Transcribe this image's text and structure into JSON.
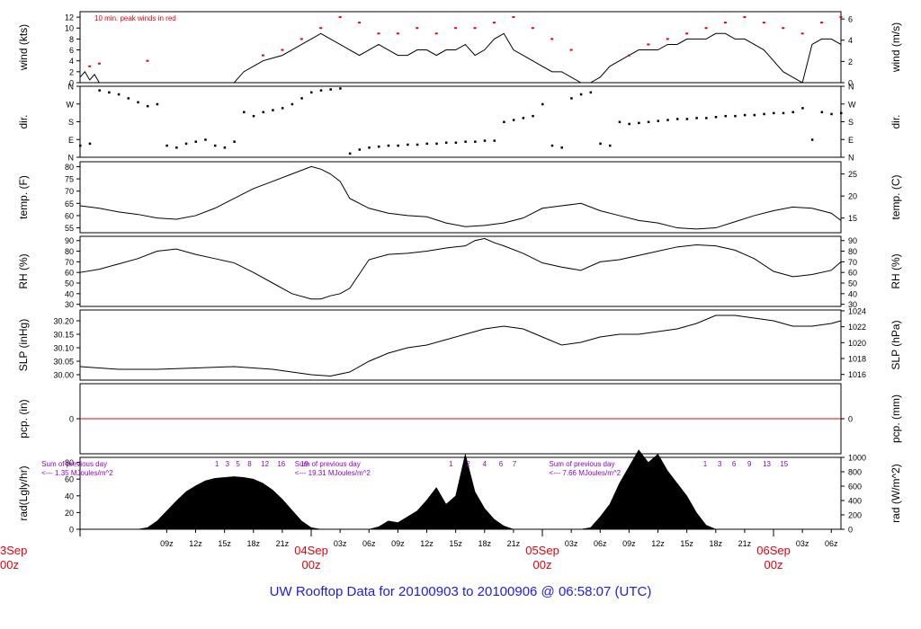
{
  "title": "UW Rooftop Data for 20100903  to  20100906 @ 06:58:07  (UTC)",
  "colors": {
    "accent_red": "#e8000c",
    "title_blue": "#1a1aff",
    "purple": "#9400d3",
    "ink": "#000000"
  },
  "x_axis": {
    "ticks": [
      "09z",
      "12z",
      "15z",
      "18z",
      "21z",
      "03z",
      "06z",
      "09z",
      "12z",
      "15z",
      "18z",
      "21z",
      "03z",
      "06z",
      "09z",
      "12z",
      "15z",
      "18z",
      "21z",
      "03z",
      "06z"
    ],
    "tick_hours": [
      9,
      12,
      15,
      18,
      21,
      27,
      30,
      33,
      36,
      39,
      42,
      45,
      51,
      54,
      57,
      60,
      63,
      66,
      69,
      75,
      78
    ],
    "days": [
      {
        "label_top": "3Sep",
        "label_bottom": "00z",
        "hour": 0
      },
      {
        "label_top": "04Sep",
        "label_bottom": "00z",
        "hour": 24
      },
      {
        "label_top": "05Sep",
        "label_bottom": "00z",
        "hour": 48
      },
      {
        "label_top": "06Sep",
        "label_bottom": "00z",
        "hour": 72
      }
    ]
  },
  "chart_data": [
    {
      "type": "line",
      "ylabel": "wind (kts)",
      "ylabel_right": "wind (m/s)",
      "left_ticks": [
        "0",
        "2",
        "4",
        "6",
        "8",
        "10",
        "12"
      ],
      "left_tick_values": [
        0,
        2,
        4,
        6,
        8,
        10,
        12
      ],
      "right_ticks": [
        "0",
        "2",
        "4",
        "6"
      ],
      "right_tick_values": [
        0,
        3.89,
        7.78,
        11.66
      ],
      "ylim": [
        0,
        13
      ],
      "annotation": "10 min. peak winds in red",
      "series": [
        {
          "x": [
            0,
            0.5,
            1,
            1.5,
            2,
            3,
            4,
            5,
            6,
            7,
            8,
            9,
            10,
            11,
            12,
            13,
            14,
            15,
            16,
            17,
            18,
            19,
            20,
            21,
            22,
            23,
            24,
            25,
            26,
            27,
            28,
            29,
            30,
            31,
            32,
            33,
            34,
            35,
            36,
            37,
            38,
            39,
            40,
            41,
            42,
            43,
            44,
            45,
            46,
            47,
            48,
            49,
            50,
            51,
            52,
            53,
            54,
            55,
            56,
            57,
            58,
            59,
            60,
            61,
            62,
            63,
            64,
            65,
            66,
            67,
            68,
            69,
            70,
            71,
            72,
            73,
            74,
            75,
            76,
            77,
            78,
            79
          ],
          "values": [
            1,
            2,
            0.5,
            1.5,
            0,
            0,
            0,
            0,
            0,
            0,
            0,
            0,
            0,
            0,
            0,
            0,
            0,
            0,
            0,
            2,
            3,
            4,
            4.5,
            5,
            6,
            7,
            8,
            9,
            8,
            7,
            6,
            5,
            6,
            7,
            6,
            5,
            5,
            6,
            6,
            5,
            6,
            6,
            7,
            5,
            6,
            8,
            9,
            6,
            5,
            4,
            3,
            2,
            2,
            1,
            0,
            0,
            1,
            3,
            4,
            5,
            6,
            6,
            6,
            7,
            7,
            8,
            8,
            8,
            9,
            9,
            8,
            8,
            7,
            6,
            4,
            2,
            1,
            0,
            7,
            8,
            8,
            7
          ]
        },
        {
          "name": "peak",
          "x": [
            1,
            2,
            7,
            19,
            21,
            23,
            25,
            27,
            29,
            31,
            33,
            35,
            37,
            39,
            41,
            43,
            45,
            47,
            49,
            51,
            57,
            59,
            61,
            63,
            65,
            67,
            69,
            71,
            73,
            75,
            77,
            79
          ],
          "values": [
            3,
            3.5,
            4,
            5,
            6,
            8,
            10,
            12,
            11,
            9,
            9,
            10,
            9,
            10,
            10,
            11,
            12,
            10,
            8,
            6,
            5,
            7,
            8,
            9,
            10,
            11,
            12,
            11,
            10,
            9,
            11,
            12
          ]
        }
      ]
    },
    {
      "type": "scatter",
      "ylabel": "dir.",
      "ylabel_right": "dir.",
      "left_ticks": [
        "N",
        "E",
        "S",
        "W",
        "N"
      ],
      "right_ticks": [
        "N",
        "E",
        "S",
        "W",
        "N"
      ],
      "tick_values": [
        0,
        90,
        180,
        270,
        360
      ],
      "ylim": [
        0,
        360
      ],
      "series": [
        {
          "x": [
            0,
            1,
            2,
            3,
            4,
            5,
            6,
            7,
            8,
            9,
            10,
            11,
            12,
            13,
            14,
            15,
            16,
            17,
            18,
            19,
            20,
            21,
            22,
            23,
            24,
            25,
            26,
            27,
            28,
            29,
            30,
            31,
            32,
            33,
            34,
            35,
            36,
            37,
            38,
            39,
            40,
            41,
            42,
            43,
            44,
            45,
            46,
            47,
            48,
            49,
            50,
            51,
            52,
            53,
            54,
            55,
            56,
            57,
            58,
            59,
            60,
            61,
            62,
            63,
            64,
            65,
            66,
            67,
            68,
            69,
            70,
            71,
            72,
            73,
            74,
            75,
            76,
            77,
            78,
            79
          ],
          "values": [
            60,
            70,
            340,
            330,
            320,
            300,
            280,
            260,
            270,
            60,
            50,
            70,
            80,
            90,
            60,
            50,
            80,
            230,
            210,
            230,
            240,
            250,
            270,
            300,
            330,
            340,
            345,
            350,
            20,
            40,
            50,
            55,
            60,
            60,
            65,
            65,
            70,
            70,
            75,
            75,
            80,
            80,
            85,
            85,
            180,
            190,
            200,
            210,
            270,
            60,
            50,
            300,
            320,
            330,
            70,
            60,
            180,
            170,
            175,
            180,
            185,
            190,
            195,
            195,
            200,
            200,
            205,
            210,
            210,
            215,
            215,
            220,
            225,
            225,
            230,
            250,
            90,
            230,
            220,
            225
          ]
        }
      ]
    },
    {
      "type": "line",
      "ylabel": "temp. (F)",
      "ylabel_right": "temp. (C)",
      "left_ticks": [
        "55",
        "60",
        "65",
        "70",
        "75",
        "80"
      ],
      "left_tick_values": [
        55,
        60,
        65,
        70,
        75,
        80
      ],
      "right_ticks": [
        "15",
        "20",
        "25"
      ],
      "right_tick_values": [
        59,
        68,
        77
      ],
      "ylim": [
        53,
        82
      ],
      "series": [
        {
          "x": [
            0,
            2,
            4,
            6,
            8,
            10,
            12,
            14,
            16,
            18,
            20,
            22,
            24,
            25,
            26,
            27,
            28,
            30,
            32,
            34,
            36,
            38,
            40,
            42,
            44,
            46,
            47,
            48,
            50,
            52,
            54,
            56,
            58,
            60,
            62,
            64,
            66,
            68,
            70,
            72,
            74,
            76,
            78,
            79
          ],
          "values": [
            64,
            63,
            61.5,
            60.5,
            59,
            58.5,
            60,
            63,
            67,
            71,
            74,
            77,
            80,
            79,
            77,
            74,
            67,
            63,
            61,
            60,
            59.5,
            57,
            55.5,
            56,
            57,
            59,
            61,
            63,
            64,
            65,
            62,
            60,
            58,
            57,
            55,
            54.5,
            55,
            57.5,
            60,
            62,
            63.5,
            63,
            61,
            58
          ]
        }
      ]
    },
    {
      "type": "line",
      "ylabel": "RH (%)",
      "ylabel_right": "RH (%)",
      "left_ticks": [
        "30",
        "40",
        "50",
        "60",
        "70",
        "80",
        "90"
      ],
      "left_tick_values": [
        30,
        40,
        50,
        60,
        70,
        80,
        90
      ],
      "right_ticks": [
        "30",
        "40",
        "50",
        "60",
        "70",
        "80",
        "90"
      ],
      "ylim": [
        28,
        94
      ],
      "series": [
        {
          "x": [
            0,
            2,
            4,
            6,
            8,
            10,
            12,
            14,
            16,
            18,
            20,
            22,
            24,
            25,
            26,
            27,
            28,
            30,
            32,
            34,
            36,
            38,
            40,
            41,
            42,
            43,
            44,
            46,
            48,
            50,
            52,
            54,
            56,
            58,
            60,
            62,
            64,
            66,
            68,
            70,
            72,
            74,
            76,
            78,
            79
          ],
          "values": [
            60,
            63,
            68,
            73,
            80,
            82,
            77,
            73,
            69,
            60,
            50,
            40,
            35,
            35,
            38,
            40,
            45,
            72,
            77,
            78,
            80,
            83,
            85,
            90,
            92,
            88,
            85,
            78,
            69,
            65,
            62,
            70,
            72,
            76,
            80,
            84,
            86,
            85,
            81,
            73,
            61,
            56,
            58,
            62,
            70
          ]
        }
      ]
    },
    {
      "type": "line",
      "ylabel": "SLP (inHg)",
      "ylabel_right": "SLP (hPa)",
      "left_ticks": [
        "30.00",
        "30.05",
        "30.10",
        "30.15",
        "30.20"
      ],
      "left_tick_values": [
        30.0,
        30.05,
        30.1,
        30.15,
        30.2
      ],
      "right_ticks": [
        "1016",
        "1018",
        "1020",
        "1022",
        "1024"
      ],
      "right_tick_values": [
        30.001,
        30.06,
        30.119,
        30.178,
        30.237
      ],
      "ylim": [
        29.98,
        30.24
      ],
      "series": [
        {
          "x": [
            0,
            4,
            8,
            12,
            16,
            20,
            24,
            26,
            28,
            30,
            32,
            34,
            36,
            38,
            40,
            42,
            44,
            46,
            48,
            50,
            52,
            54,
            56,
            58,
            60,
            62,
            64,
            66,
            68,
            70,
            72,
            74,
            76,
            78,
            79
          ],
          "values": [
            30.03,
            30.02,
            30.02,
            30.025,
            30.03,
            30.02,
            30.0,
            29.995,
            30.01,
            30.05,
            30.08,
            30.1,
            30.11,
            30.13,
            30.15,
            30.17,
            30.18,
            30.17,
            30.14,
            30.11,
            30.12,
            30.14,
            30.15,
            30.15,
            30.16,
            30.17,
            30.19,
            30.22,
            30.22,
            30.21,
            30.2,
            30.18,
            30.18,
            30.19,
            30.2
          ]
        }
      ]
    },
    {
      "type": "line",
      "ylabel": "pcp. (in)",
      "ylabel_right": "pcp. (mm)",
      "left_ticks": [
        "0"
      ],
      "right_ticks": [
        "0"
      ],
      "ylim": [
        -1,
        1
      ],
      "series": [
        {
          "x": [
            0,
            79
          ],
          "values": [
            0,
            0
          ]
        }
      ]
    },
    {
      "type": "area",
      "ylabel": "rad(Lgly/hr)",
      "ylabel_right": "rad (W/m^2)",
      "left_ticks": [
        "0",
        "20",
        "40",
        "60",
        "80"
      ],
      "left_tick_values": [
        0,
        20,
        40,
        60,
        80
      ],
      "right_ticks": [
        "0",
        "200",
        "400",
        "600",
        "800",
        "1000"
      ],
      "right_tick_values": [
        0,
        17.2,
        34.4,
        51.6,
        68.8,
        86.0
      ],
      "ylim": [
        0,
        86
      ],
      "annotations": [
        {
          "line1": "Sum of previous day",
          "line2": "<--- 1.35 MJoules/m^2",
          "hour": -4
        },
        {
          "line1": "Sum of previous day",
          "line2": "<--- 19.31 MJoules/m^2",
          "hour": 22.3
        },
        {
          "line1": "Sum of previous day",
          "line2": "<--- 7.66 MJoules/m^2",
          "hour": 48.7
        }
      ],
      "hour_labels": [
        {
          "text": "1",
          "hour": 14.2
        },
        {
          "text": "3",
          "hour": 15.3
        },
        {
          "text": "5",
          "hour": 16.4
        },
        {
          "text": "8",
          "hour": 17.6
        },
        {
          "text": "12",
          "hour": 19.2
        },
        {
          "text": "16",
          "hour": 20.9
        },
        {
          "text": "19",
          "hour": 23.3
        },
        {
          "text": "1",
          "hour": 38.5
        },
        {
          "text": "2",
          "hour": 40.3
        },
        {
          "text": "4",
          "hour": 42.0
        },
        {
          "text": "6",
          "hour": 43.7
        },
        {
          "text": "7",
          "hour": 45.1
        },
        {
          "text": "1",
          "hour": 64.9
        },
        {
          "text": "3",
          "hour": 66.4
        },
        {
          "text": "6",
          "hour": 67.9
        },
        {
          "text": "9",
          "hour": 69.5
        },
        {
          "text": "13",
          "hour": 71.3
        },
        {
          "text": "15",
          "hour": 73.1
        }
      ],
      "series": [
        {
          "x": [
            0,
            6,
            7,
            8,
            9,
            10,
            11,
            12,
            13,
            14,
            15,
            16,
            17,
            18,
            19,
            20,
            21,
            22,
            23,
            24,
            25,
            26,
            27,
            28,
            29,
            30,
            31,
            32,
            33,
            34,
            35,
            36,
            37,
            38,
            39,
            40,
            41,
            42,
            43,
            44,
            45,
            46,
            47,
            48,
            49,
            50,
            51,
            52,
            53,
            54,
            55,
            56,
            57,
            58,
            59,
            60,
            61,
            62,
            63,
            64,
            65,
            66,
            67,
            68,
            69,
            70,
            71,
            72,
            73,
            74,
            75,
            79
          ],
          "values": [
            0,
            0,
            2,
            10,
            22,
            34,
            45,
            52,
            58,
            61,
            62,
            63,
            62,
            60,
            55,
            47,
            36,
            23,
            10,
            2,
            0,
            0,
            0,
            0,
            0,
            0,
            3,
            10,
            8,
            15,
            22,
            35,
            50,
            30,
            40,
            90,
            45,
            25,
            12,
            4,
            0,
            0,
            0,
            0,
            0,
            0,
            0,
            0,
            2,
            15,
            30,
            55,
            75,
            95,
            80,
            90,
            70,
            55,
            40,
            20,
            5,
            0,
            0,
            0,
            0,
            0,
            0,
            0,
            0,
            0,
            0,
            0
          ]
        }
      ]
    }
  ]
}
